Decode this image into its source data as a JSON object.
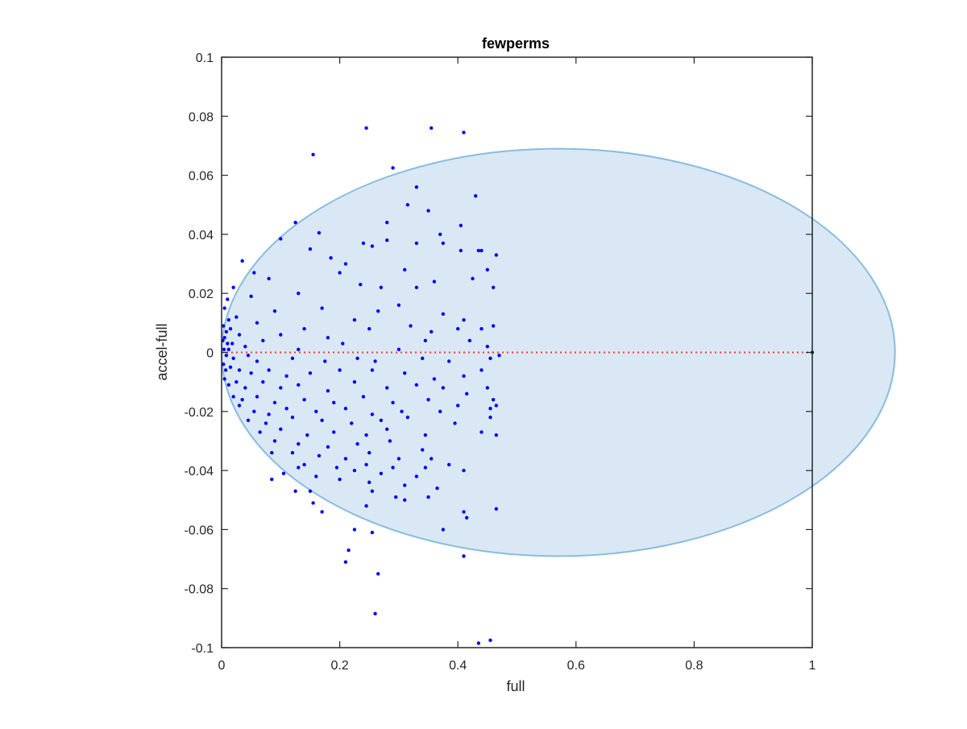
{
  "chart_data": {
    "type": "scatter",
    "title": "fewperms",
    "xlabel": "full",
    "ylabel": "accel-full",
    "xlim": [
      0,
      1
    ],
    "ylim": [
      -0.1,
      0.1
    ],
    "xticks": [
      0,
      0.2,
      0.4,
      0.6,
      0.8,
      1
    ],
    "xtick_labels": [
      "0",
      "0.2",
      "0.4",
      "0.6",
      "0.8",
      "1"
    ],
    "yticks": [
      -0.1,
      -0.08,
      -0.06,
      -0.04,
      -0.02,
      0,
      0.02,
      0.04,
      0.06,
      0.08,
      0.1
    ],
    "ytick_labels": [
      "-0.1",
      "-0.08",
      "-0.06",
      "-0.04",
      "-0.02",
      "0",
      "0.02",
      "0.04",
      "0.06",
      "0.08",
      "0.1"
    ],
    "grid": false,
    "colors": {
      "points": "#0000ff",
      "ellipse_fill": "#d9e8f4",
      "ellipse_edge": "#88bde0",
      "zero_line": "#ff3333",
      "axis": "#262626"
    },
    "ellipse": {
      "cx": 0.57,
      "cy": 0.0,
      "rx": 0.57,
      "ry": 0.069
    },
    "reference_line": {
      "y": 0,
      "style": "dotted"
    },
    "points": [
      [
        0.245,
        0.076
      ],
      [
        0.355,
        0.076
      ],
      [
        0.41,
        0.0745
      ],
      [
        0.155,
        0.067
      ],
      [
        0.29,
        0.0625
      ],
      [
        0.33,
        0.056
      ],
      [
        0.43,
        0.053
      ],
      [
        0.315,
        0.05
      ],
      [
        0.35,
        0.048
      ],
      [
        0.28,
        0.044
      ],
      [
        0.125,
        0.044
      ],
      [
        0.405,
        0.043
      ],
      [
        0.165,
        0.0405
      ],
      [
        0.37,
        0.04
      ],
      [
        0.28,
        0.038
      ],
      [
        0.33,
        0.037
      ],
      [
        0.1,
        0.0385
      ],
      [
        0.24,
        0.037
      ],
      [
        0.255,
        0.036
      ],
      [
        0.44,
        0.0345
      ],
      [
        0.435,
        0.0345
      ],
      [
        0.405,
        0.0345
      ],
      [
        0.375,
        0.037
      ],
      [
        0.15,
        0.035
      ],
      [
        0.185,
        0.032
      ],
      [
        0.21,
        0.03
      ],
      [
        0.465,
        0.033
      ],
      [
        0.45,
        0.028
      ],
      [
        0.2,
        0.027
      ],
      [
        0.055,
        0.027
      ],
      [
        0.035,
        0.031
      ],
      [
        0.31,
        0.028
      ],
      [
        0.425,
        0.025
      ],
      [
        0.36,
        0.024
      ],
      [
        0.27,
        0.022
      ],
      [
        0.235,
        0.023
      ],
      [
        0.33,
        0.022
      ],
      [
        0.08,
        0.025
      ],
      [
        0.46,
        0.022
      ],
      [
        0.13,
        0.02
      ],
      [
        0.02,
        0.022
      ],
      [
        0.01,
        0.018
      ],
      [
        0.005,
        0.015
      ],
      [
        0.05,
        0.019
      ],
      [
        0.09,
        0.014
      ],
      [
        0.17,
        0.015
      ],
      [
        0.265,
        0.014
      ],
      [
        0.3,
        0.016
      ],
      [
        0.375,
        0.013
      ],
      [
        0.41,
        0.011
      ],
      [
        0.225,
        0.011
      ],
      [
        0.14,
        0.008
      ],
      [
        0.06,
        0.01
      ],
      [
        0.025,
        0.012
      ],
      [
        0.012,
        0.011
      ],
      [
        0.003,
        0.009
      ],
      [
        0.008,
        0.007
      ],
      [
        0.015,
        0.008
      ],
      [
        0.03,
        0.006
      ],
      [
        0.1,
        0.006
      ],
      [
        0.18,
        0.005
      ],
      [
        0.25,
        0.008
      ],
      [
        0.32,
        0.009
      ],
      [
        0.355,
        0.007
      ],
      [
        0.4,
        0.008
      ],
      [
        0.44,
        0.008
      ],
      [
        0.46,
        0.009
      ],
      [
        0.005,
        0.005
      ],
      [
        0.002,
        0.004
      ],
      [
        0.01,
        0.003
      ],
      [
        0.018,
        0.003
      ],
      [
        0.04,
        0.002
      ],
      [
        0.07,
        0.004
      ],
      [
        0.13,
        0.001
      ],
      [
        0.205,
        0.003
      ],
      [
        0.3,
        0.001
      ],
      [
        0.345,
        0.004
      ],
      [
        0.42,
        0.004
      ],
      [
        0.45,
        0.002
      ],
      [
        0.004,
        0.001
      ],
      [
        0.008,
        -0.001
      ],
      [
        0.012,
        0.001
      ],
      [
        0.02,
        -0.002
      ],
      [
        0.045,
        -0.001
      ],
      [
        0.06,
        -0.003
      ],
      [
        0.12,
        -0.002
      ],
      [
        0.175,
        -0.003
      ],
      [
        0.23,
        -0.002
      ],
      [
        0.26,
        -0.003
      ],
      [
        0.34,
        -0.002
      ],
      [
        0.385,
        -0.003
      ],
      [
        0.455,
        -0.002
      ],
      [
        0.47,
        -0.001
      ],
      [
        0.003,
        -0.004
      ],
      [
        0.007,
        -0.006
      ],
      [
        0.015,
        -0.005
      ],
      [
        0.03,
        -0.006
      ],
      [
        0.05,
        -0.007
      ],
      [
        0.08,
        -0.006
      ],
      [
        0.11,
        -0.008
      ],
      [
        0.15,
        -0.007
      ],
      [
        0.2,
        -0.006
      ],
      [
        0.255,
        -0.006
      ],
      [
        0.31,
        -0.007
      ],
      [
        0.36,
        -0.009
      ],
      [
        0.41,
        -0.008
      ],
      [
        0.44,
        -0.006
      ],
      [
        0.005,
        -0.009
      ],
      [
        0.012,
        -0.011
      ],
      [
        0.025,
        -0.01
      ],
      [
        0.04,
        -0.012
      ],
      [
        0.07,
        -0.01
      ],
      [
        0.1,
        -0.012
      ],
      [
        0.13,
        -0.011
      ],
      [
        0.18,
        -0.013
      ],
      [
        0.225,
        -0.01
      ],
      [
        0.28,
        -0.012
      ],
      [
        0.33,
        -0.011
      ],
      [
        0.375,
        -0.012
      ],
      [
        0.415,
        -0.014
      ],
      [
        0.45,
        -0.012
      ],
      [
        0.02,
        -0.015
      ],
      [
        0.035,
        -0.016
      ],
      [
        0.06,
        -0.015
      ],
      [
        0.09,
        -0.017
      ],
      [
        0.14,
        -0.016
      ],
      [
        0.19,
        -0.017
      ],
      [
        0.24,
        -0.015
      ],
      [
        0.29,
        -0.017
      ],
      [
        0.35,
        -0.016
      ],
      [
        0.4,
        -0.018
      ],
      [
        0.46,
        -0.016
      ],
      [
        0.03,
        -0.018
      ],
      [
        0.055,
        -0.02
      ],
      [
        0.08,
        -0.021
      ],
      [
        0.11,
        -0.019
      ],
      [
        0.16,
        -0.02
      ],
      [
        0.21,
        -0.019
      ],
      [
        0.255,
        -0.021
      ],
      [
        0.305,
        -0.02
      ],
      [
        0.37,
        -0.02
      ],
      [
        0.455,
        -0.019
      ],
      [
        0.465,
        -0.018
      ],
      [
        0.045,
        -0.023
      ],
      [
        0.075,
        -0.024
      ],
      [
        0.12,
        -0.022
      ],
      [
        0.17,
        -0.023
      ],
      [
        0.22,
        -0.024
      ],
      [
        0.27,
        -0.023
      ],
      [
        0.315,
        -0.022
      ],
      [
        0.455,
        -0.022
      ],
      [
        0.065,
        -0.027
      ],
      [
        0.1,
        -0.026
      ],
      [
        0.145,
        -0.028
      ],
      [
        0.19,
        -0.027
      ],
      [
        0.245,
        -0.028
      ],
      [
        0.28,
        -0.026
      ],
      [
        0.345,
        -0.028
      ],
      [
        0.395,
        -0.024
      ],
      [
        0.465,
        -0.028
      ],
      [
        0.09,
        -0.03
      ],
      [
        0.13,
        -0.031
      ],
      [
        0.18,
        -0.032
      ],
      [
        0.23,
        -0.031
      ],
      [
        0.285,
        -0.03
      ],
      [
        0.34,
        -0.033
      ],
      [
        0.44,
        -0.027
      ],
      [
        0.12,
        -0.034
      ],
      [
        0.165,
        -0.035
      ],
      [
        0.21,
        -0.036
      ],
      [
        0.25,
        -0.034
      ],
      [
        0.3,
        -0.036
      ],
      [
        0.355,
        -0.036
      ],
      [
        0.085,
        -0.034
      ],
      [
        0.14,
        -0.038
      ],
      [
        0.195,
        -0.039
      ],
      [
        0.245,
        -0.038
      ],
      [
        0.29,
        -0.039
      ],
      [
        0.345,
        -0.039
      ],
      [
        0.41,
        -0.04
      ],
      [
        0.13,
        -0.039
      ],
      [
        0.16,
        -0.042
      ],
      [
        0.225,
        -0.04
      ],
      [
        0.27,
        -0.041
      ],
      [
        0.33,
        -0.042
      ],
      [
        0.385,
        -0.038
      ],
      [
        0.085,
        -0.043
      ],
      [
        0.105,
        -0.041
      ],
      [
        0.2,
        -0.043
      ],
      [
        0.25,
        -0.044
      ],
      [
        0.31,
        -0.045
      ],
      [
        0.365,
        -0.046
      ],
      [
        0.15,
        -0.047
      ],
      [
        0.125,
        -0.047
      ],
      [
        0.255,
        -0.047
      ],
      [
        0.295,
        -0.049
      ],
      [
        0.35,
        -0.049
      ],
      [
        0.31,
        -0.05
      ],
      [
        0.155,
        -0.051
      ],
      [
        0.245,
        -0.052
      ],
      [
        0.17,
        -0.054
      ],
      [
        0.41,
        -0.054
      ],
      [
        0.465,
        -0.053
      ],
      [
        0.415,
        -0.056
      ],
      [
        0.375,
        -0.06
      ],
      [
        0.225,
        -0.06
      ],
      [
        0.255,
        -0.061
      ],
      [
        0.215,
        -0.067
      ],
      [
        0.41,
        -0.069
      ],
      [
        0.21,
        -0.071
      ],
      [
        0.265,
        -0.075
      ],
      [
        0.26,
        -0.0885
      ],
      [
        0.435,
        -0.0985
      ],
      [
        0.455,
        -0.0975
      ],
      [
        1.0,
        0.0
      ]
    ]
  }
}
